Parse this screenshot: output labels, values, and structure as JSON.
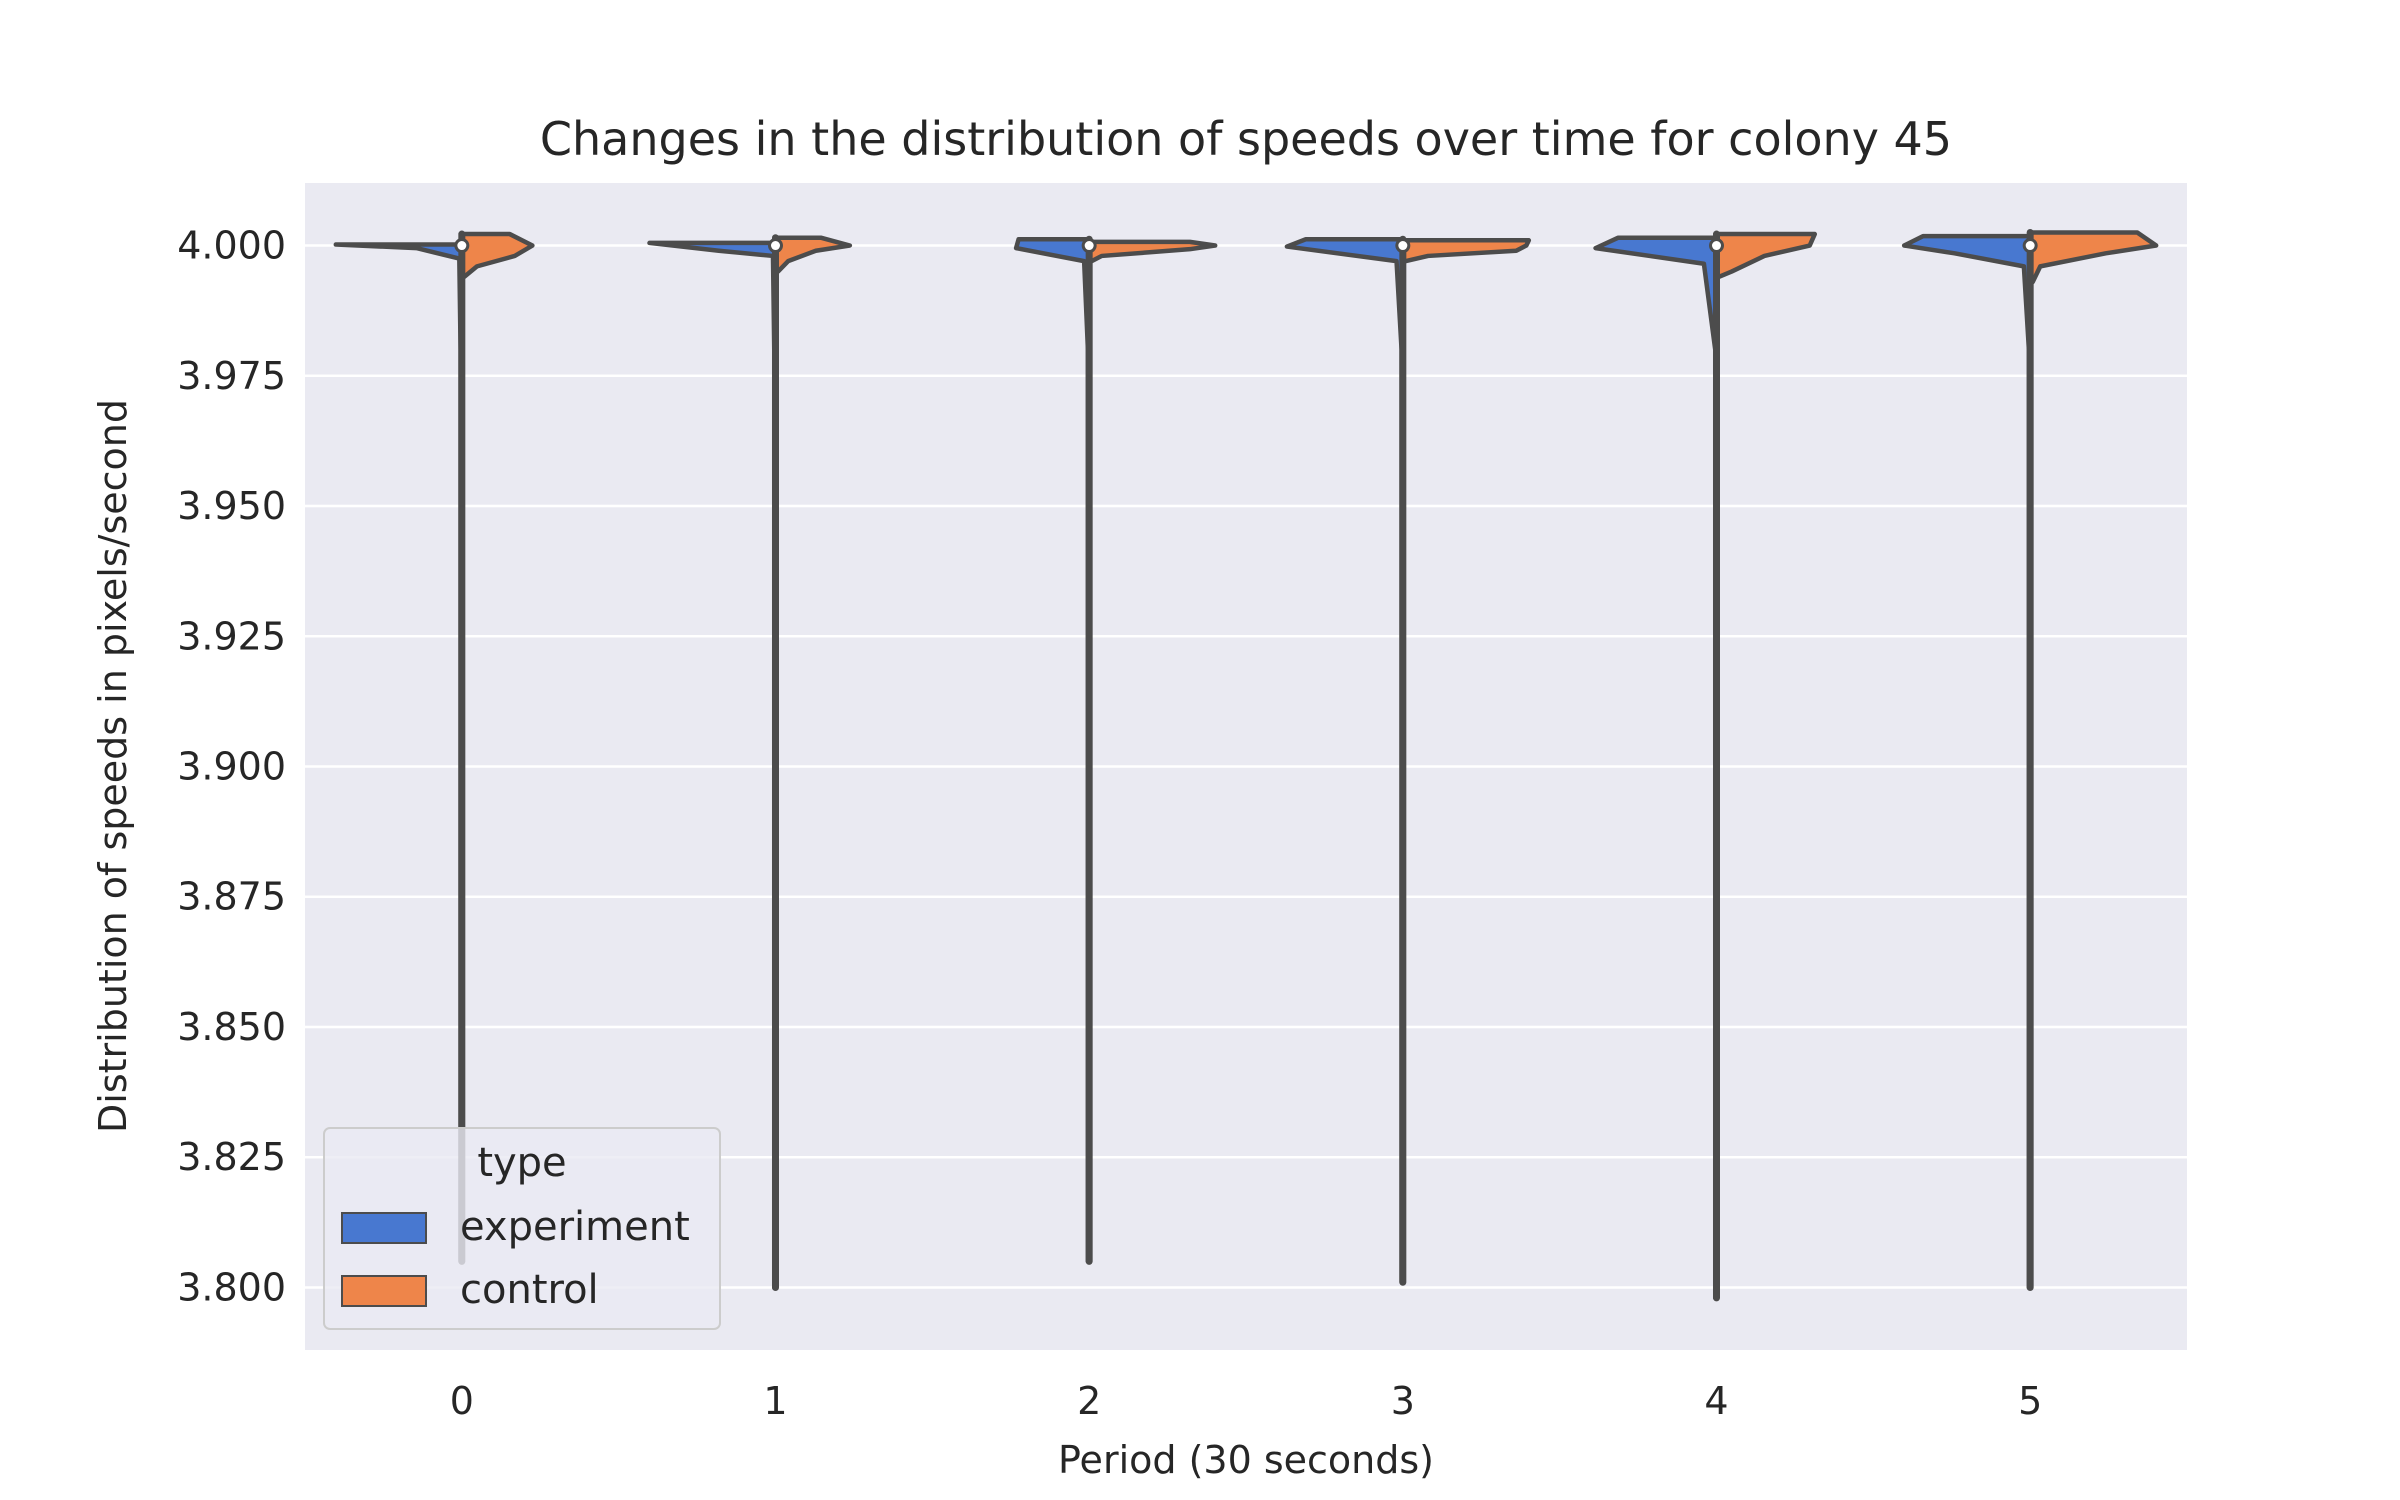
{
  "chart_data": {
    "type": "violin",
    "title": "Changes in the distribution of speeds over time for colony 45",
    "xlabel": "Period (30 seconds)",
    "ylabel": "Distribution of speeds in pixels/second",
    "categories": [
      "0",
      "1",
      "2",
      "3",
      "4",
      "5"
    ],
    "ylim": [
      3.788,
      4.012
    ],
    "yticks": [
      3.8,
      3.825,
      3.85,
      3.875,
      3.9,
      3.925,
      3.95,
      3.975,
      4.0
    ],
    "ytick_labels": [
      "3.800",
      "3.825",
      "3.850",
      "3.875",
      "3.900",
      "3.925",
      "3.950",
      "3.975",
      "4.000"
    ],
    "grid": true,
    "split": true,
    "legend": {
      "title": "type",
      "placement": "lower-left",
      "entries": [
        "experiment",
        "control"
      ]
    },
    "series": [
      {
        "name": "experiment",
        "color": "#4878d0"
      },
      {
        "name": "control",
        "color": "#ee854a"
      }
    ],
    "violins": [
      {
        "category": "0",
        "median": 4.0,
        "experiment": {
          "min": 3.805,
          "max": 4.0002,
          "profile": [
            [
              4.0002,
              1.0
            ],
            [
              3.9995,
              0.36
            ],
            [
              3.9975,
              0.02
            ],
            [
              3.98,
              0.01
            ],
            [
              3.805,
              0.01
            ]
          ]
        },
        "control": {
          "min": 3.994,
          "max": 4.0022,
          "profile": [
            [
              4.0022,
              0.38
            ],
            [
              4.0,
              0.56
            ],
            [
              3.998,
              0.42
            ],
            [
              3.996,
              0.12
            ],
            [
              3.994,
              0.02
            ]
          ]
        }
      },
      {
        "category": "1",
        "median": 4.0,
        "experiment": {
          "min": 3.8,
          "max": 4.0005,
          "profile": [
            [
              4.0005,
              1.0
            ],
            [
              3.999,
              0.45
            ],
            [
              3.998,
              0.02
            ],
            [
              3.98,
              0.01
            ],
            [
              3.8,
              0.01
            ]
          ]
        },
        "control": {
          "min": 3.995,
          "max": 4.0015,
          "profile": [
            [
              4.0015,
              0.36
            ],
            [
              4.0,
              0.59
            ],
            [
              3.999,
              0.32
            ],
            [
              3.997,
              0.1
            ],
            [
              3.995,
              0.02
            ]
          ]
        }
      },
      {
        "category": "2",
        "median": 4.0,
        "experiment": {
          "min": 3.805,
          "max": 4.0012,
          "profile": [
            [
              4.0012,
              0.56
            ],
            [
              3.9995,
              0.58
            ],
            [
              3.997,
              0.04
            ],
            [
              3.98,
              0.01
            ],
            [
              3.805,
              0.01
            ]
          ]
        },
        "control": {
          "min": 3.997,
          "max": 4.0007,
          "profile": [
            [
              4.0007,
              0.8
            ],
            [
              4.0,
              1.0
            ],
            [
              3.9993,
              0.8
            ],
            [
              3.998,
              0.1
            ],
            [
              3.997,
              0.02
            ]
          ]
        }
      },
      {
        "category": "3",
        "median": 4.0,
        "experiment": {
          "min": 3.801,
          "max": 4.0012,
          "profile": [
            [
              4.0012,
              0.77
            ],
            [
              3.9998,
              0.92
            ],
            [
              3.997,
              0.05
            ],
            [
              3.98,
              0.01
            ],
            [
              3.801,
              0.01
            ]
          ]
        },
        "control": {
          "min": 3.997,
          "max": 4.001,
          "profile": [
            [
              4.001,
              1.0
            ],
            [
              4.0,
              0.98
            ],
            [
              3.999,
              0.9
            ],
            [
              3.998,
              0.2
            ],
            [
              3.997,
              0.02
            ]
          ]
        }
      },
      {
        "category": "4",
        "median": 4.0,
        "experiment": {
          "min": 3.798,
          "max": 4.0015,
          "profile": [
            [
              4.0015,
              0.78
            ],
            [
              3.9995,
              0.96
            ],
            [
              3.9965,
              0.1
            ],
            [
              3.98,
              0.01
            ],
            [
              3.798,
              0.01
            ]
          ]
        },
        "control": {
          "min": 3.994,
          "max": 4.0022,
          "profile": [
            [
              4.0022,
              0.78
            ],
            [
              4.0,
              0.74
            ],
            [
              3.998,
              0.38
            ],
            [
              3.995,
              0.12
            ],
            [
              3.994,
              0.02
            ]
          ]
        }
      },
      {
        "category": "5",
        "median": 4.0,
        "experiment": {
          "min": 3.8,
          "max": 4.0018,
          "profile": [
            [
              4.0018,
              0.85
            ],
            [
              4.0,
              1.0
            ],
            [
              3.9985,
              0.6
            ],
            [
              3.996,
              0.05
            ],
            [
              3.98,
              0.01
            ],
            [
              3.8,
              0.01
            ]
          ]
        },
        "control": {
          "min": 3.993,
          "max": 4.0025,
          "profile": [
            [
              4.0025,
              0.85
            ],
            [
              4.0,
              1.0
            ],
            [
              3.9985,
              0.6
            ],
            [
              3.996,
              0.08
            ],
            [
              3.993,
              0.02
            ]
          ]
        }
      }
    ]
  }
}
